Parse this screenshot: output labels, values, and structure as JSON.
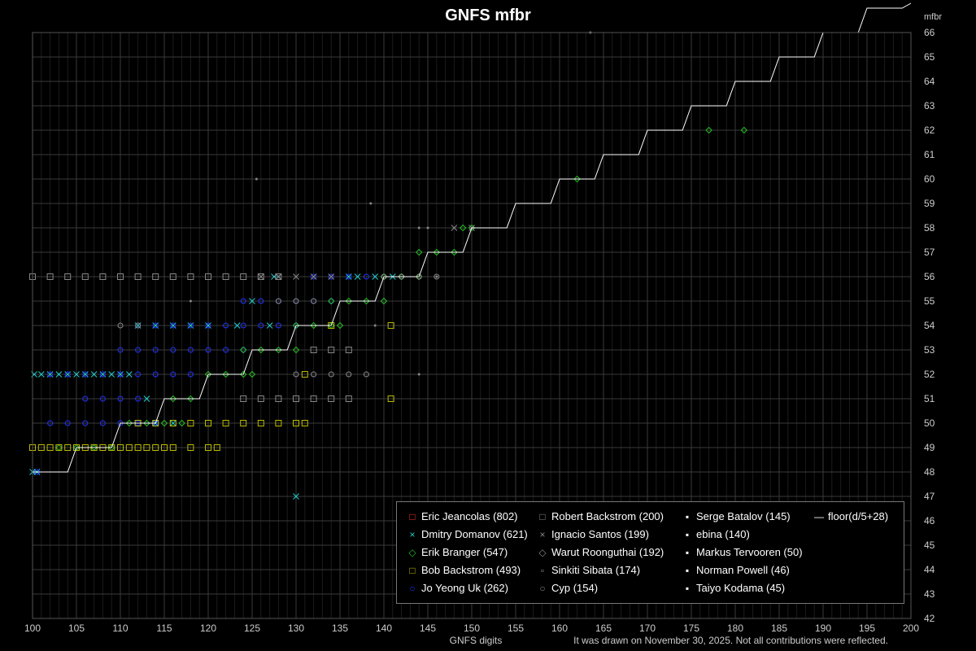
{
  "chart_data": {
    "type": "scatter",
    "title": "GNFS mfbr",
    "xlabel": "GNFS digits",
    "ylabel": "mfbr",
    "xlim": [
      100,
      200
    ],
    "ylim": [
      42,
      66
    ],
    "x_ticks": [
      100,
      105,
      110,
      115,
      120,
      125,
      130,
      135,
      140,
      145,
      150,
      155,
      160,
      165,
      170,
      175,
      180,
      185,
      190,
      195,
      200
    ],
    "y_ticks": [
      42,
      43,
      44,
      45,
      46,
      47,
      48,
      49,
      50,
      51,
      52,
      53,
      54,
      55,
      56,
      57,
      58,
      59,
      60,
      61,
      62,
      63,
      64,
      65,
      66
    ],
    "grid": true,
    "footnote": "It was drawn on November 30, 2025. Not all contributions were reflected.",
    "legend_placement": "bottom-right",
    "legend": [
      {
        "label": "Eric Jeancolas (802)",
        "color": "#ff3333",
        "marker": "square"
      },
      {
        "label": "Dmitry Domanov (621)",
        "color": "#22cccc",
        "marker": "x"
      },
      {
        "label": "Erik Branger (547)",
        "color": "#22bb22",
        "marker": "diamond"
      },
      {
        "label": "Bob Backstrom (493)",
        "color": "#bbbb00",
        "marker": "square"
      },
      {
        "label": "Jo Yeong Uk (262)",
        "color": "#2233ff",
        "marker": "circle"
      },
      {
        "label": "Robert Backstrom (200)",
        "color": "#888888",
        "marker": "square"
      },
      {
        "label": "Ignacio Santos (199)",
        "color": "#888888",
        "marker": "x"
      },
      {
        "label": "Warut Roonguthai (192)",
        "color": "#888888",
        "marker": "diamond"
      },
      {
        "label": "Sinkiti Sibata (174)",
        "color": "#888888",
        "marker": "small-square"
      },
      {
        "label": "Cyp (154)",
        "color": "#888888",
        "marker": "circle"
      },
      {
        "label": "Serge Batalov (145)",
        "color": "#ffffff",
        "marker": "dot"
      },
      {
        "label": "ebina (140)",
        "color": "#ffffff",
        "marker": "dot"
      },
      {
        "label": "Markus Tervooren (50)",
        "color": "#ffffff",
        "marker": "dot"
      },
      {
        "label": "Norman Powell (46)",
        "color": "#ffffff",
        "marker": "dot"
      },
      {
        "label": "Taiyo Kodama (45)",
        "color": "#ffffff",
        "marker": "dot"
      },
      {
        "label": "floor(d/5+28)",
        "color": "#ffffff",
        "marker": "line"
      }
    ],
    "step_line": {
      "formula": "floor(d/5+28)",
      "x_range": [
        100,
        200
      ],
      "color": "#ffffff"
    },
    "series": [
      {
        "color": "#22cccc",
        "marker": "x",
        "points": [
          [
            100,
            48
          ],
          [
            100.5,
            48
          ],
          [
            100.2,
            52
          ],
          [
            101,
            52
          ],
          [
            102,
            52
          ],
          [
            103,
            52
          ],
          [
            104,
            52
          ],
          [
            105,
            52
          ],
          [
            106,
            52
          ],
          [
            107,
            52
          ],
          [
            108,
            52
          ],
          [
            109,
            52
          ],
          [
            110,
            52
          ],
          [
            111,
            52
          ],
          [
            113,
            51
          ],
          [
            114,
            50
          ],
          [
            116,
            50
          ],
          [
            112,
            54
          ],
          [
            114,
            54
          ],
          [
            116,
            54
          ],
          [
            118,
            54
          ],
          [
            120,
            54
          ],
          [
            123.3,
            54
          ],
          [
            127,
            54
          ],
          [
            125,
            55
          ],
          [
            127.5,
            56
          ],
          [
            128,
            56
          ],
          [
            130,
            47
          ],
          [
            136,
            56
          ],
          [
            137,
            56
          ],
          [
            139,
            56
          ],
          [
            141,
            56
          ]
        ]
      },
      {
        "color": "#2233ff",
        "marker": "circle",
        "points": [
          [
            100.5,
            48
          ],
          [
            102,
            52
          ],
          [
            104,
            52
          ],
          [
            106,
            52
          ],
          [
            108,
            52
          ],
          [
            110,
            52
          ],
          [
            112,
            52
          ],
          [
            114,
            52
          ],
          [
            116,
            52
          ],
          [
            118,
            52
          ],
          [
            102,
            50
          ],
          [
            104,
            50
          ],
          [
            106,
            50
          ],
          [
            108,
            50
          ],
          [
            110,
            50
          ],
          [
            112,
            50
          ],
          [
            114,
            50
          ],
          [
            106,
            51
          ],
          [
            108,
            51
          ],
          [
            110,
            51
          ],
          [
            112,
            51
          ],
          [
            110,
            53
          ],
          [
            112,
            53
          ],
          [
            114,
            53
          ],
          [
            116,
            53
          ],
          [
            118,
            53
          ],
          [
            120,
            53
          ],
          [
            122,
            53
          ],
          [
            124,
            53
          ],
          [
            112,
            54
          ],
          [
            114,
            54
          ],
          [
            116,
            54
          ],
          [
            118,
            54
          ],
          [
            120,
            54
          ],
          [
            122,
            54
          ],
          [
            124,
            54
          ],
          [
            126,
            54
          ],
          [
            128,
            54
          ],
          [
            130,
            54
          ],
          [
            124,
            55
          ],
          [
            126,
            55
          ],
          [
            128,
            55
          ],
          [
            130,
            55
          ],
          [
            132,
            55
          ],
          [
            134,
            55
          ],
          [
            132,
            56
          ],
          [
            134,
            56
          ],
          [
            136,
            56
          ],
          [
            138,
            56
          ]
        ]
      },
      {
        "color": "#22bb22",
        "marker": "diamond",
        "points": [
          [
            103,
            49
          ],
          [
            105,
            49
          ],
          [
            107,
            49
          ],
          [
            109,
            49
          ],
          [
            111,
            50
          ],
          [
            113,
            50
          ],
          [
            115,
            50
          ],
          [
            117,
            50
          ],
          [
            116,
            51
          ],
          [
            118,
            51
          ],
          [
            120,
            52
          ],
          [
            122,
            52
          ],
          [
            124,
            52
          ],
          [
            125,
            52
          ],
          [
            124,
            53
          ],
          [
            126,
            53
          ],
          [
            128,
            53
          ],
          [
            130,
            53
          ],
          [
            130,
            54
          ],
          [
            132,
            54
          ],
          [
            134,
            54
          ],
          [
            135,
            54
          ],
          [
            134,
            55
          ],
          [
            136,
            55
          ],
          [
            138,
            55
          ],
          [
            140,
            55
          ],
          [
            140,
            56
          ],
          [
            142,
            56
          ],
          [
            144,
            56
          ],
          [
            144,
            57
          ],
          [
            146,
            57
          ],
          [
            148,
            57
          ],
          [
            149,
            58
          ],
          [
            150,
            58
          ],
          [
            162,
            60
          ],
          [
            177,
            62
          ],
          [
            181,
            62
          ]
        ]
      },
      {
        "color": "#bbbb00",
        "marker": "square",
        "points": [
          [
            100,
            49
          ],
          [
            101,
            49
          ],
          [
            102,
            49
          ],
          [
            103,
            49
          ],
          [
            104,
            49
          ],
          [
            105,
            49
          ],
          [
            106,
            49
          ],
          [
            107,
            49
          ],
          [
            108,
            49
          ],
          [
            109,
            49
          ],
          [
            110,
            49
          ],
          [
            111,
            49
          ],
          [
            112,
            49
          ],
          [
            113,
            49
          ],
          [
            114,
            49
          ],
          [
            115,
            49
          ],
          [
            116,
            49
          ],
          [
            118,
            49
          ],
          [
            120,
            49
          ],
          [
            121,
            49
          ],
          [
            112,
            50
          ],
          [
            114,
            50
          ],
          [
            116,
            50
          ],
          [
            118,
            50
          ],
          [
            120,
            50
          ],
          [
            122,
            50
          ],
          [
            124,
            50
          ],
          [
            126,
            50
          ],
          [
            128,
            50
          ],
          [
            130,
            50
          ],
          [
            131,
            50
          ],
          [
            131,
            52
          ],
          [
            134,
            54
          ],
          [
            140.8,
            54
          ],
          [
            140.8,
            51
          ]
        ]
      },
      {
        "color": "#888888",
        "marker": "square",
        "points": [
          [
            100,
            56
          ],
          [
            102,
            56
          ],
          [
            104,
            56
          ],
          [
            106,
            56
          ],
          [
            108,
            56
          ],
          [
            110,
            56
          ],
          [
            112,
            56
          ],
          [
            114,
            56
          ],
          [
            116,
            56
          ],
          [
            118,
            56
          ],
          [
            120,
            56
          ],
          [
            122,
            56
          ],
          [
            124,
            56
          ],
          [
            126,
            56
          ],
          [
            128,
            56
          ],
          [
            124,
            51
          ],
          [
            126,
            51
          ],
          [
            128,
            51
          ],
          [
            130,
            51
          ],
          [
            132,
            51
          ],
          [
            134,
            51
          ],
          [
            136,
            51
          ],
          [
            132,
            53
          ],
          [
            134,
            53
          ],
          [
            136,
            53
          ]
        ]
      },
      {
        "color": "#888888",
        "marker": "x",
        "points": [
          [
            126,
            56
          ],
          [
            128,
            56
          ],
          [
            130,
            56
          ],
          [
            132,
            56
          ],
          [
            134,
            56
          ],
          [
            148,
            58
          ],
          [
            150,
            58
          ]
        ]
      },
      {
        "color": "#888888",
        "marker": "circle",
        "points": [
          [
            110,
            54
          ],
          [
            112,
            54
          ],
          [
            130,
            52
          ],
          [
            132,
            52
          ],
          [
            134,
            52
          ],
          [
            136,
            52
          ],
          [
            138,
            52
          ],
          [
            128,
            55
          ],
          [
            130,
            55
          ],
          [
            132,
            55
          ],
          [
            140,
            56
          ],
          [
            142,
            56
          ],
          [
            144,
            56
          ],
          [
            146,
            56
          ]
        ]
      },
      {
        "color": "#888888",
        "marker": "dot",
        "points": [
          [
            125.5,
            60
          ],
          [
            138.5,
            59
          ],
          [
            144,
            58
          ],
          [
            145,
            58
          ],
          [
            146,
            56
          ],
          [
            144,
            52
          ],
          [
            139,
            54
          ],
          [
            163.5,
            66
          ],
          [
            118,
            55
          ]
        ]
      }
    ]
  }
}
